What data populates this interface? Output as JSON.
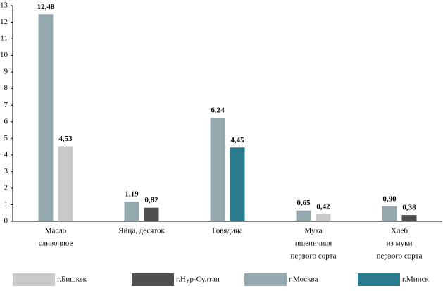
{
  "chart_data": {
    "type": "bar",
    "categories": [
      [
        "Масло",
        "сливочное"
      ],
      [
        "Яйца,  десяток"
      ],
      [
        "Говядина"
      ],
      [
        "Мука",
        "пшеничная",
        "первого сорта"
      ],
      [
        "Хлеб",
        "из муки",
        "первого сорта"
      ]
    ],
    "series": [
      {
        "name": "г.Бишкек",
        "color": "#c9c9c9",
        "values": [
          4.53,
          null,
          null,
          0.42,
          null
        ],
        "value_labels": [
          "4,53",
          null,
          null,
          "0,42",
          null
        ]
      },
      {
        "name": "г.Нур-Султан",
        "color": "#4f4f4f",
        "values": [
          null,
          0.82,
          null,
          null,
          0.38
        ],
        "value_labels": [
          null,
          "0,82",
          null,
          null,
          "0,38"
        ]
      },
      {
        "name": "г.Москва",
        "color": "#94aaae",
        "values": [
          12.48,
          1.19,
          6.24,
          0.65,
          0.9
        ],
        "value_labels": [
          "12,48",
          "1,19",
          "6,24",
          "0,65",
          "0,90"
        ]
      },
      {
        "name": "г.Минск",
        "color": "#2a7b8e",
        "values": [
          null,
          null,
          4.45,
          null,
          null
        ],
        "value_labels": [
          null,
          null,
          "4,45",
          null,
          null
        ]
      }
    ],
    "ylim": [
      0,
      13
    ],
    "yticks": [
      0,
      1,
      2,
      3,
      4,
      5,
      6,
      7,
      8,
      9,
      10,
      11,
      12,
      13
    ],
    "grid": false
  }
}
